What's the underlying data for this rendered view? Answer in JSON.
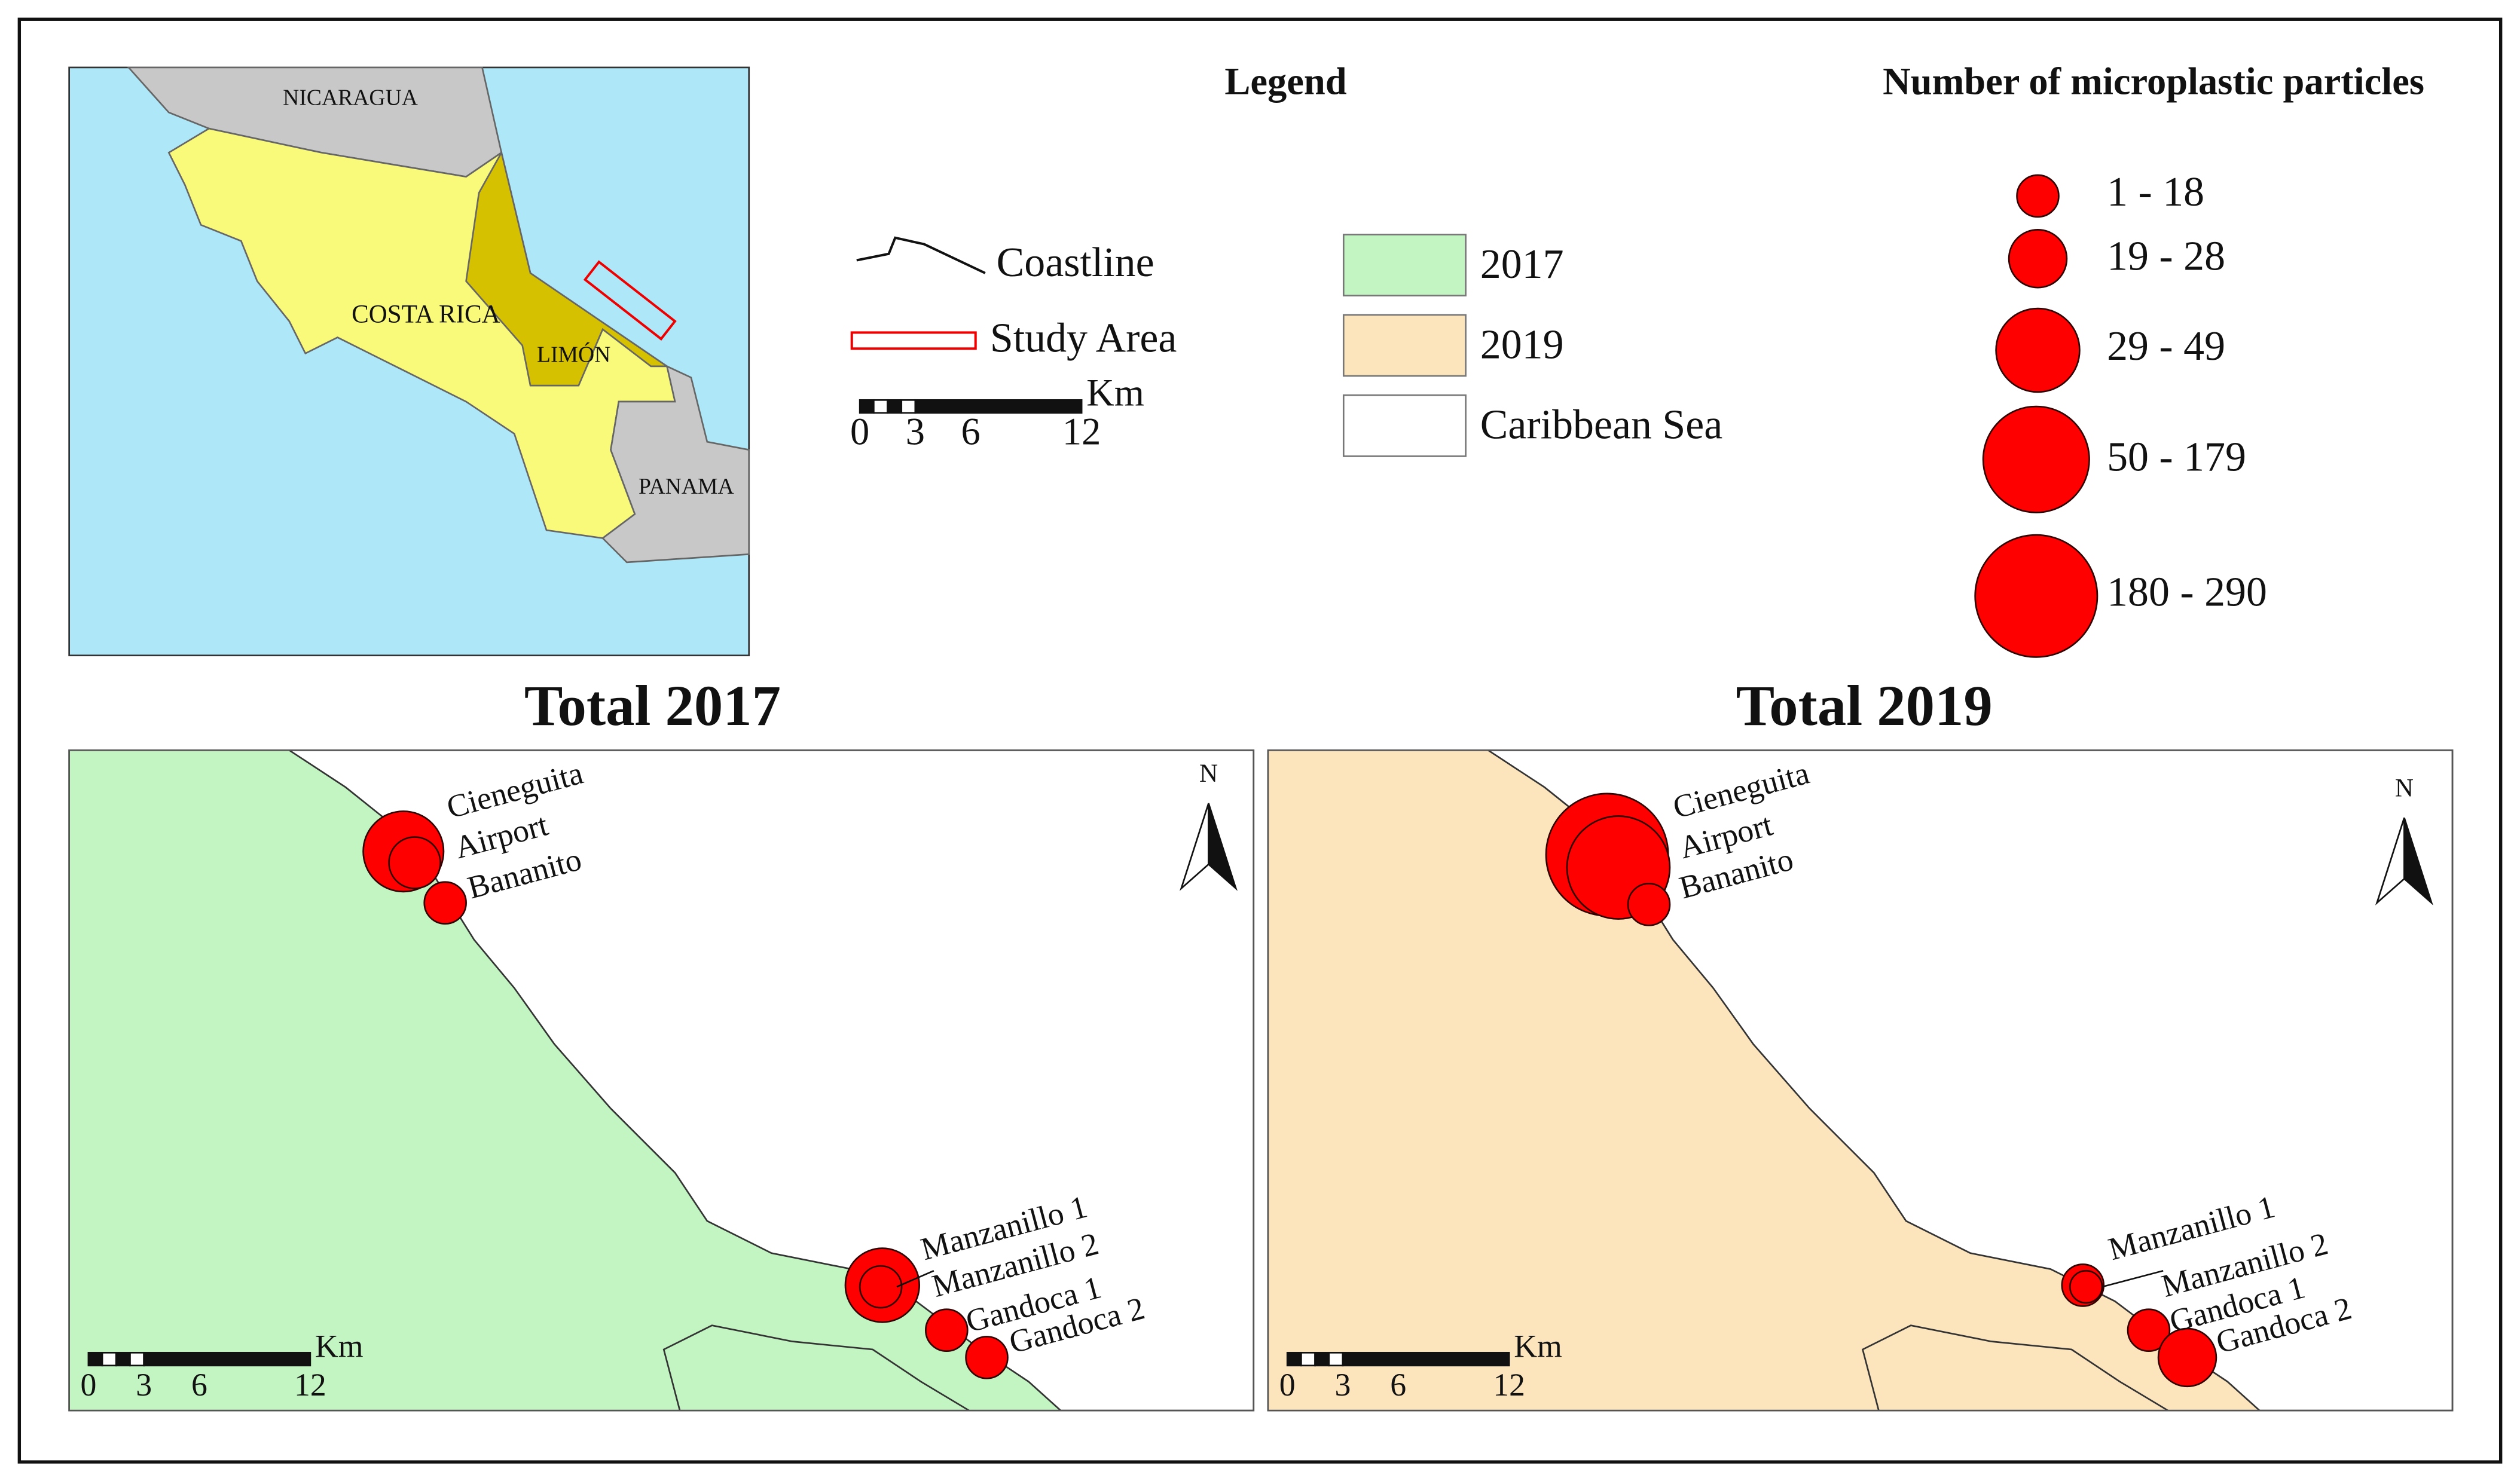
{
  "inset_map": {
    "labels": [
      "NICARAGUA",
      "COSTA RICA",
      "LIMÓN",
      "PANAMA"
    ]
  },
  "legend": {
    "title": "Legend",
    "line_items": [
      "Coastline",
      "Study Area"
    ],
    "scale_bar": {
      "ticks": [
        "0",
        "3",
        "6",
        "12"
      ],
      "unit": "Km"
    },
    "fill_items": [
      "2017",
      "2019",
      "Caribbean Sea"
    ]
  },
  "size_legend": {
    "title": "Number of microplastic particles",
    "classes": [
      "1 - 18",
      "19 - 28",
      "29 - 49",
      "50 - 179",
      "180 - 290"
    ]
  },
  "panels": [
    {
      "title": "Total 2017",
      "north": "N",
      "sites": [
        "Cieneguita",
        "Airport",
        "Bananito",
        "Manzanillo 1",
        "Manzanillo 2",
        "Gandoca 1",
        "Gandoca 2"
      ],
      "scale_bar": {
        "ticks": [
          "0",
          "3",
          "6",
          "12"
        ],
        "unit": "Km"
      }
    },
    {
      "title": "Total 2019",
      "north": "N",
      "sites": [
        "Cieneguita",
        "Airport",
        "Bananito",
        "Manzanillo 1",
        "Manzanillo 2",
        "Gandoca 1",
        "Gandoca 2"
      ],
      "scale_bar": {
        "ticks": [
          "0",
          "3",
          "6",
          "12"
        ],
        "unit": "Km"
      }
    }
  ]
}
